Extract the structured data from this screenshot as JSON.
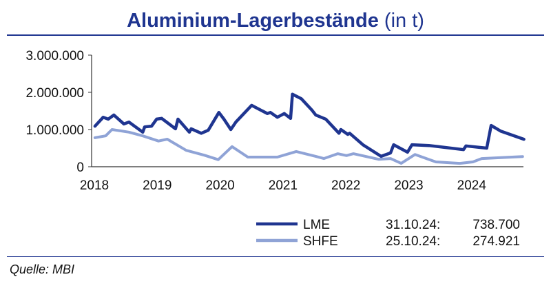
{
  "title": {
    "main": "Aluminium-Lagerbestände",
    "unit": "(in t)"
  },
  "source": "Quelle: MBI",
  "chart_data": {
    "type": "line",
    "title": "Aluminium-Lagerbestände (in t)",
    "xlabel": "",
    "ylabel": "",
    "xlim": [
      2018,
      2024.83
    ],
    "ylim": [
      0,
      3000000
    ],
    "x_ticks": [
      "2018",
      "2019",
      "2020",
      "2021",
      "2022",
      "2023",
      "2024"
    ],
    "y_ticks": [
      "0",
      "1.000.000",
      "2.000.000",
      "3.000.000"
    ],
    "grid": false,
    "legend_position": "bottom-right",
    "series": [
      {
        "name": "LME",
        "color": "#1f3590",
        "date": "31.10.24:",
        "last": "738.700",
        "x": [
          2018.01,
          2018.14,
          2018.22,
          2018.31,
          2018.47,
          2018.55,
          2018.77,
          2018.8,
          2018.91,
          2018.99,
          2019.07,
          2019.29,
          2019.33,
          2019.51,
          2019.54,
          2019.7,
          2019.81,
          2019.98,
          2020.06,
          2020.17,
          2020.25,
          2020.5,
          2020.75,
          2020.8,
          2020.91,
          2021.02,
          2021.12,
          2021.15,
          2021.29,
          2021.46,
          2021.52,
          2021.68,
          2021.89,
          2021.92,
          2022.03,
          2022.06,
          2022.27,
          2022.56,
          2022.71,
          2022.76,
          2022.98,
          2023.05,
          2023.32,
          2023.87,
          2023.91,
          2024.24,
          2024.31,
          2024.46,
          2024.83
        ],
        "y": [
          1090000,
          1330000,
          1280000,
          1390000,
          1150000,
          1200000,
          930000,
          1070000,
          1090000,
          1280000,
          1300000,
          1020000,
          1280000,
          930000,
          1020000,
          900000,
          980000,
          1460000,
          1280000,
          1000000,
          1200000,
          1650000,
          1430000,
          1460000,
          1330000,
          1430000,
          1300000,
          1950000,
          1830000,
          1520000,
          1390000,
          1280000,
          900000,
          1000000,
          870000,
          900000,
          590000,
          280000,
          370000,
          590000,
          390000,
          590000,
          570000,
          460000,
          560000,
          500000,
          1110000,
          960000,
          738700
        ]
      },
      {
        "name": "SHFE",
        "color": "#8fa3d6",
        "date": "25.10.24:",
        "last": "274.921",
        "x": [
          2018.01,
          2018.18,
          2018.28,
          2018.55,
          2018.77,
          2019.02,
          2019.16,
          2019.46,
          2019.75,
          2019.97,
          2020.19,
          2020.44,
          2020.91,
          2021.21,
          2021.52,
          2021.65,
          2021.87,
          2022.01,
          2022.12,
          2022.52,
          2022.71,
          2022.88,
          2023.1,
          2023.43,
          2023.81,
          2024.02,
          2024.16,
          2024.81
        ],
        "y": [
          780000,
          830000,
          1000000,
          930000,
          830000,
          690000,
          740000,
          440000,
          310000,
          190000,
          540000,
          260000,
          260000,
          410000,
          280000,
          220000,
          350000,
          300000,
          350000,
          200000,
          220000,
          90000,
          330000,
          130000,
          90000,
          130000,
          220000,
          274921
        ]
      }
    ]
  }
}
